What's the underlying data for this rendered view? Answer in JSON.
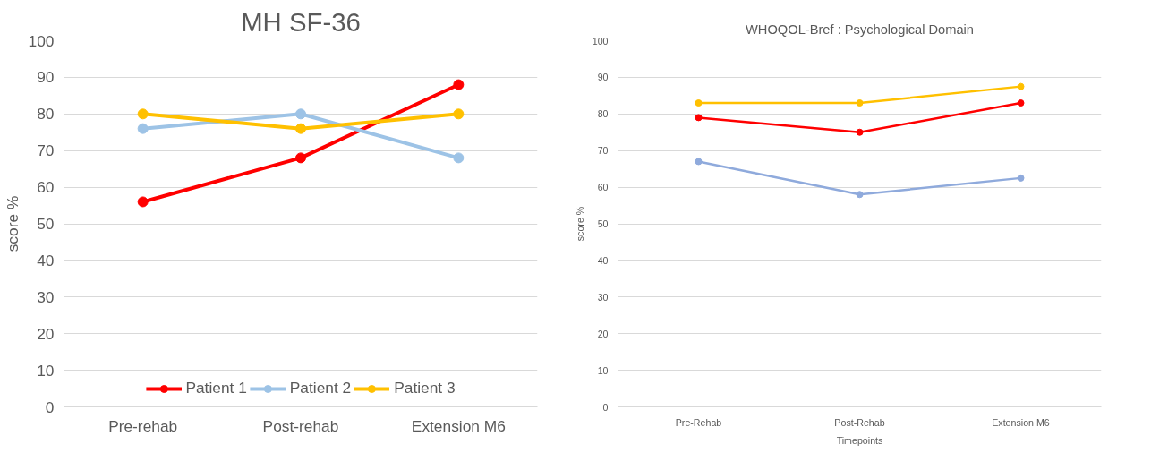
{
  "chart_data": [
    {
      "type": "line",
      "title": "MH SF-36",
      "ylabel": "score %",
      "categories": [
        "Pre-rehab",
        "Post-rehab",
        "Extension M6"
      ],
      "ylim": [
        0,
        100
      ],
      "yticks": [
        0,
        10,
        20,
        30,
        40,
        50,
        60,
        70,
        80,
        90,
        100
      ],
      "grid": "y",
      "legend": "bottom",
      "marker": "circle",
      "series": [
        {
          "name": "Patient 1",
          "color": "#ff0000",
          "values": [
            56,
            68,
            88
          ]
        },
        {
          "name": "Patient 2",
          "color": "#9dc3e6",
          "values": [
            76,
            80,
            68
          ]
        },
        {
          "name": "Patient 3",
          "color": "#ffc000",
          "values": [
            80,
            76,
            80
          ]
        }
      ]
    },
    {
      "type": "line",
      "title": "WHOQOL-Bref : Psychological Domain",
      "ylabel": "score %",
      "xlabel": "Timepoints",
      "categories": [
        "Pre-Rehab",
        "Post-Rehab",
        "Extension M6"
      ],
      "ylim": [
        0,
        100
      ],
      "yticks": [
        0,
        10,
        20,
        30,
        40,
        50,
        60,
        70,
        80,
        90,
        100
      ],
      "grid": "y",
      "marker": "circle",
      "series": [
        {
          "color": "#ffc000",
          "values": [
            83,
            83,
            87.5
          ]
        },
        {
          "color": "#ff0000",
          "values": [
            79,
            75,
            83
          ]
        },
        {
          "color": "#8faadc",
          "values": [
            67,
            58,
            62.5
          ]
        }
      ]
    }
  ]
}
